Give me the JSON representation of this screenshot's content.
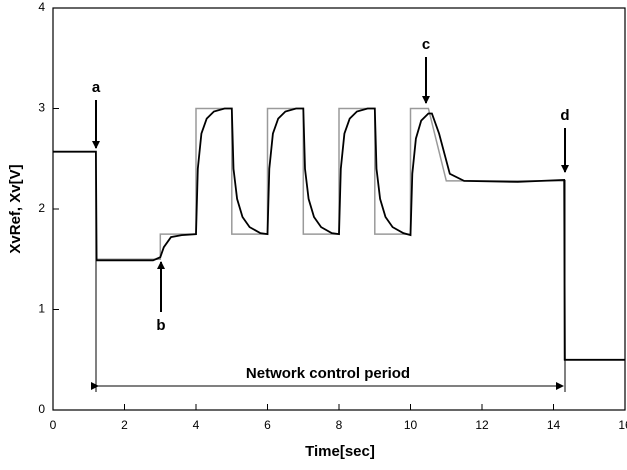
{
  "chart_data": {
    "type": "line",
    "xlabel": "Time[sec]",
    "ylabel": "XvRef, Xv[V]",
    "xlim": [
      0,
      16
    ],
    "xticks": [
      0,
      2,
      4,
      6,
      8,
      10,
      12,
      14,
      16
    ],
    "ylim": [
      0,
      4
    ],
    "yticks": [
      0,
      1,
      2,
      3,
      4
    ],
    "series": [
      {
        "color": "#9a9a9a",
        "x": [
          0,
          1.2,
          1.2,
          3.0,
          3.0,
          4.0,
          4.0,
          5.0,
          5.0,
          6.0,
          6.0,
          7.0,
          7.0,
          8.0,
          8.0,
          9.0,
          9.0,
          10.0,
          10.0,
          10.5,
          11.0,
          14.3,
          14.3,
          16
        ],
        "values": [
          2.57,
          2.57,
          1.5,
          1.5,
          1.75,
          1.75,
          3.0,
          3.0,
          1.75,
          1.75,
          3.0,
          3.0,
          1.75,
          1.75,
          3.0,
          3.0,
          1.75,
          1.75,
          3.0,
          3.0,
          2.28,
          2.28,
          0.5,
          0.5
        ]
      },
      {
        "color": "#000000",
        "x": [
          0,
          1.2,
          1.22,
          2.8,
          3.0,
          3.1,
          3.3,
          3.6,
          4.0,
          4.05,
          4.15,
          4.3,
          4.5,
          4.8,
          5.0,
          5.05,
          5.15,
          5.3,
          5.5,
          5.8,
          6.0,
          6.05,
          6.15,
          6.3,
          6.5,
          6.8,
          7.0,
          7.05,
          7.15,
          7.3,
          7.5,
          7.8,
          8.0,
          8.05,
          8.15,
          8.3,
          8.5,
          8.8,
          9.0,
          9.05,
          9.15,
          9.3,
          9.5,
          9.8,
          10.0,
          10.05,
          10.15,
          10.3,
          10.5,
          10.6,
          10.8,
          11.1,
          11.5,
          13,
          14.3,
          14.32,
          16
        ],
        "values": [
          2.57,
          2.57,
          1.49,
          1.49,
          1.52,
          1.62,
          1.72,
          1.74,
          1.75,
          2.4,
          2.75,
          2.9,
          2.97,
          3.0,
          3.0,
          2.4,
          2.1,
          1.92,
          1.82,
          1.76,
          1.75,
          2.4,
          2.75,
          2.9,
          2.97,
          3.0,
          3.0,
          2.4,
          2.1,
          1.92,
          1.82,
          1.76,
          1.75,
          2.4,
          2.75,
          2.9,
          2.97,
          3.0,
          3.0,
          2.4,
          2.1,
          1.92,
          1.82,
          1.76,
          1.74,
          2.35,
          2.7,
          2.88,
          2.95,
          2.95,
          2.75,
          2.35,
          2.28,
          2.27,
          2.29,
          0.5,
          0.5
        ]
      }
    ],
    "annotations": [
      "a",
      "b",
      "c",
      "d",
      "Network control period"
    ]
  }
}
